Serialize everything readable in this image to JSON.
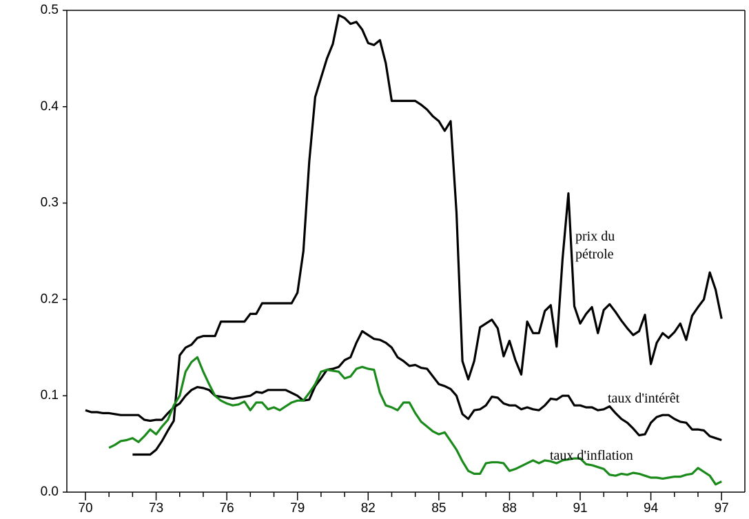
{
  "chart_data": {
    "type": "line",
    "x": [
      70,
      70.25,
      70.5,
      70.75,
      71,
      71.25,
      71.5,
      71.75,
      72,
      72.25,
      72.5,
      72.75,
      73,
      73.25,
      73.5,
      73.75,
      74,
      74.25,
      74.5,
      74.75,
      75,
      75.25,
      75.5,
      75.75,
      76,
      76.25,
      76.5,
      76.75,
      77,
      77.25,
      77.5,
      77.75,
      78,
      78.25,
      78.5,
      78.75,
      79,
      79.25,
      79.5,
      79.75,
      80,
      80.25,
      80.5,
      80.75,
      81,
      81.25,
      81.5,
      81.75,
      82,
      82.25,
      82.5,
      82.75,
      83,
      83.25,
      83.5,
      83.75,
      84,
      84.25,
      84.5,
      84.75,
      85,
      85.25,
      85.5,
      85.75,
      86,
      86.25,
      86.5,
      86.75,
      87,
      87.25,
      87.5,
      87.75,
      88,
      88.25,
      88.5,
      88.75,
      89,
      89.25,
      89.5,
      89.75,
      90,
      90.25,
      90.5,
      90.75,
      91,
      91.25,
      91.5,
      91.75,
      92,
      92.25,
      92.5,
      92.75,
      93,
      93.25,
      93.5,
      93.75,
      94,
      94.25,
      94.5,
      94.75,
      95,
      95.25,
      95.5,
      95.75,
      96,
      96.25,
      96.5,
      96.75,
      97
    ],
    "series": [
      {
        "name": "prix du pétrole",
        "color": "#000000",
        "values": [
          null,
          null,
          null,
          null,
          null,
          null,
          null,
          null,
          0.039,
          0.039,
          0.039,
          0.039,
          0.044,
          0.053,
          0.064,
          0.074,
          0.142,
          0.15,
          0.153,
          0.16,
          0.162,
          0.162,
          0.162,
          0.177,
          0.177,
          0.177,
          0.177,
          0.177,
          0.185,
          0.185,
          0.196,
          0.196,
          0.196,
          0.196,
          0.196,
          0.196,
          0.207,
          0.25,
          0.343,
          0.41,
          0.43,
          0.45,
          0.465,
          0.495,
          0.492,
          0.486,
          0.488,
          0.48,
          0.466,
          0.464,
          0.469,
          0.445,
          0.406,
          0.406,
          0.406,
          0.406,
          0.406,
          0.402,
          0.397,
          0.39,
          0.385,
          0.375,
          0.385,
          0.29,
          0.136,
          0.117,
          0.136,
          0.171,
          0.175,
          0.179,
          0.17,
          0.141,
          0.157,
          0.137,
          0.122,
          0.177,
          0.165,
          0.165,
          0.188,
          0.194,
          0.151,
          0.242,
          0.31,
          0.193,
          0.175,
          0.185,
          0.192,
          0.165,
          0.189,
          0.195,
          0.187,
          0.178,
          0.17,
          0.163,
          0.167,
          0.184,
          0.133,
          0.155,
          0.165,
          0.16,
          0.166,
          0.175,
          0.158,
          0.183,
          0.192,
          0.2,
          0.228,
          0.21,
          0.18
        ]
      },
      {
        "name": "taux d'intérêt",
        "color": "#000000",
        "values": [
          0.085,
          0.083,
          0.083,
          0.082,
          0.082,
          0.081,
          0.08,
          0.08,
          0.08,
          0.08,
          0.075,
          0.074,
          0.075,
          0.075,
          0.082,
          0.088,
          0.092,
          0.1,
          0.106,
          0.109,
          0.108,
          0.106,
          0.1,
          0.099,
          0.098,
          0.097,
          0.098,
          0.099,
          0.1,
          0.104,
          0.103,
          0.106,
          0.106,
          0.106,
          0.106,
          0.103,
          0.1,
          0.095,
          0.096,
          0.11,
          0.118,
          0.127,
          0.128,
          0.13,
          0.137,
          0.14,
          0.155,
          0.167,
          0.163,
          0.159,
          0.158,
          0.155,
          0.15,
          0.14,
          0.136,
          0.131,
          0.132,
          0.129,
          0.128,
          0.12,
          0.112,
          0.11,
          0.107,
          0.1,
          0.081,
          0.076,
          0.085,
          0.086,
          0.09,
          0.099,
          0.098,
          0.092,
          0.09,
          0.09,
          0.086,
          0.088,
          0.086,
          0.085,
          0.09,
          0.097,
          0.096,
          0.1,
          0.1,
          0.09,
          0.09,
          0.088,
          0.088,
          0.085,
          0.086,
          0.089,
          0.082,
          0.076,
          0.072,
          0.066,
          0.059,
          0.06,
          0.072,
          0.078,
          0.08,
          0.08,
          0.076,
          0.073,
          0.072,
          0.065,
          0.065,
          0.064,
          0.058,
          0.056,
          0.054
        ]
      },
      {
        "name": "taux d'inflation",
        "color": "#1a8a1a",
        "values": [
          null,
          null,
          null,
          null,
          0.046,
          0.049,
          0.053,
          0.054,
          0.056,
          0.052,
          0.058,
          0.065,
          0.06,
          0.068,
          0.075,
          0.09,
          0.1,
          0.125,
          0.135,
          0.14,
          0.125,
          0.112,
          0.1,
          0.095,
          0.092,
          0.09,
          0.091,
          0.094,
          0.085,
          0.093,
          0.093,
          0.086,
          0.088,
          0.085,
          0.089,
          0.093,
          0.095,
          0.095,
          0.103,
          0.112,
          0.125,
          0.127,
          0.126,
          0.125,
          0.118,
          0.12,
          0.128,
          0.13,
          0.128,
          0.127,
          0.103,
          0.09,
          0.088,
          0.085,
          0.093,
          0.093,
          0.082,
          0.073,
          0.068,
          0.063,
          0.06,
          0.062,
          0.053,
          0.044,
          0.032,
          0.022,
          0.019,
          0.019,
          0.03,
          0.031,
          0.031,
          0.03,
          0.022,
          0.024,
          0.027,
          0.03,
          0.033,
          0.03,
          0.033,
          0.032,
          0.03,
          0.033,
          0.034,
          0.035,
          0.035,
          0.029,
          0.028,
          0.026,
          0.024,
          0.018,
          0.017,
          0.019,
          0.018,
          0.02,
          0.019,
          0.017,
          0.015,
          0.015,
          0.014,
          0.015,
          0.016,
          0.016,
          0.018,
          0.019,
          0.025,
          0.021,
          0.017,
          0.008,
          0.011
        ]
      }
    ],
    "xlim": [
      69.21,
      97.99
    ],
    "xticks": [
      70,
      73,
      76,
      79,
      82,
      85,
      88,
      91,
      94,
      97
    ],
    "ylim": [
      0,
      0.5
    ],
    "yticks": [
      {
        "value": 0,
        "label": "0.0"
      },
      0.1,
      0.2,
      0.3,
      0.4,
      0.5
    ]
  }
}
